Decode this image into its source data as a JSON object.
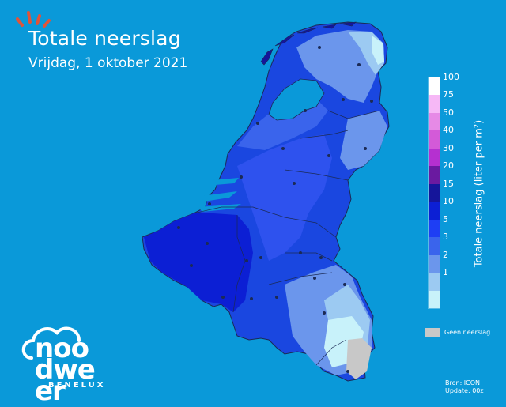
{
  "header": {
    "title": "Totale neerslag",
    "subtitle": "Vrijdag, 1 oktober 2021"
  },
  "legend": {
    "title": "Totale neerslag (liter per m²)",
    "ticks": [
      "100",
      "75",
      "50",
      "40",
      "30",
      "20",
      "15",
      "10",
      "5",
      "3",
      "2",
      "1"
    ],
    "colors": [
      "#ffffff",
      "#f6b8f6",
      "#e68ae6",
      "#d35ad8",
      "#b530d0",
      "#6a1aa0",
      "#15159a",
      "#0c1fd4",
      "#1e3ef4",
      "#3a64ec",
      "#6b96ec",
      "#9ccaf2",
      "#c8f2fa"
    ],
    "no_rain_label": "Geen neerslag",
    "no_rain_color": "#c8c8c8"
  },
  "source": {
    "line1": "Bron: ICON",
    "line2": "Update: 00z"
  },
  "logo": {
    "brand": "noodweer",
    "sub": "BENELUX"
  },
  "colors": {
    "background": "#0a99d9",
    "logo_accent": "#e0543a"
  }
}
